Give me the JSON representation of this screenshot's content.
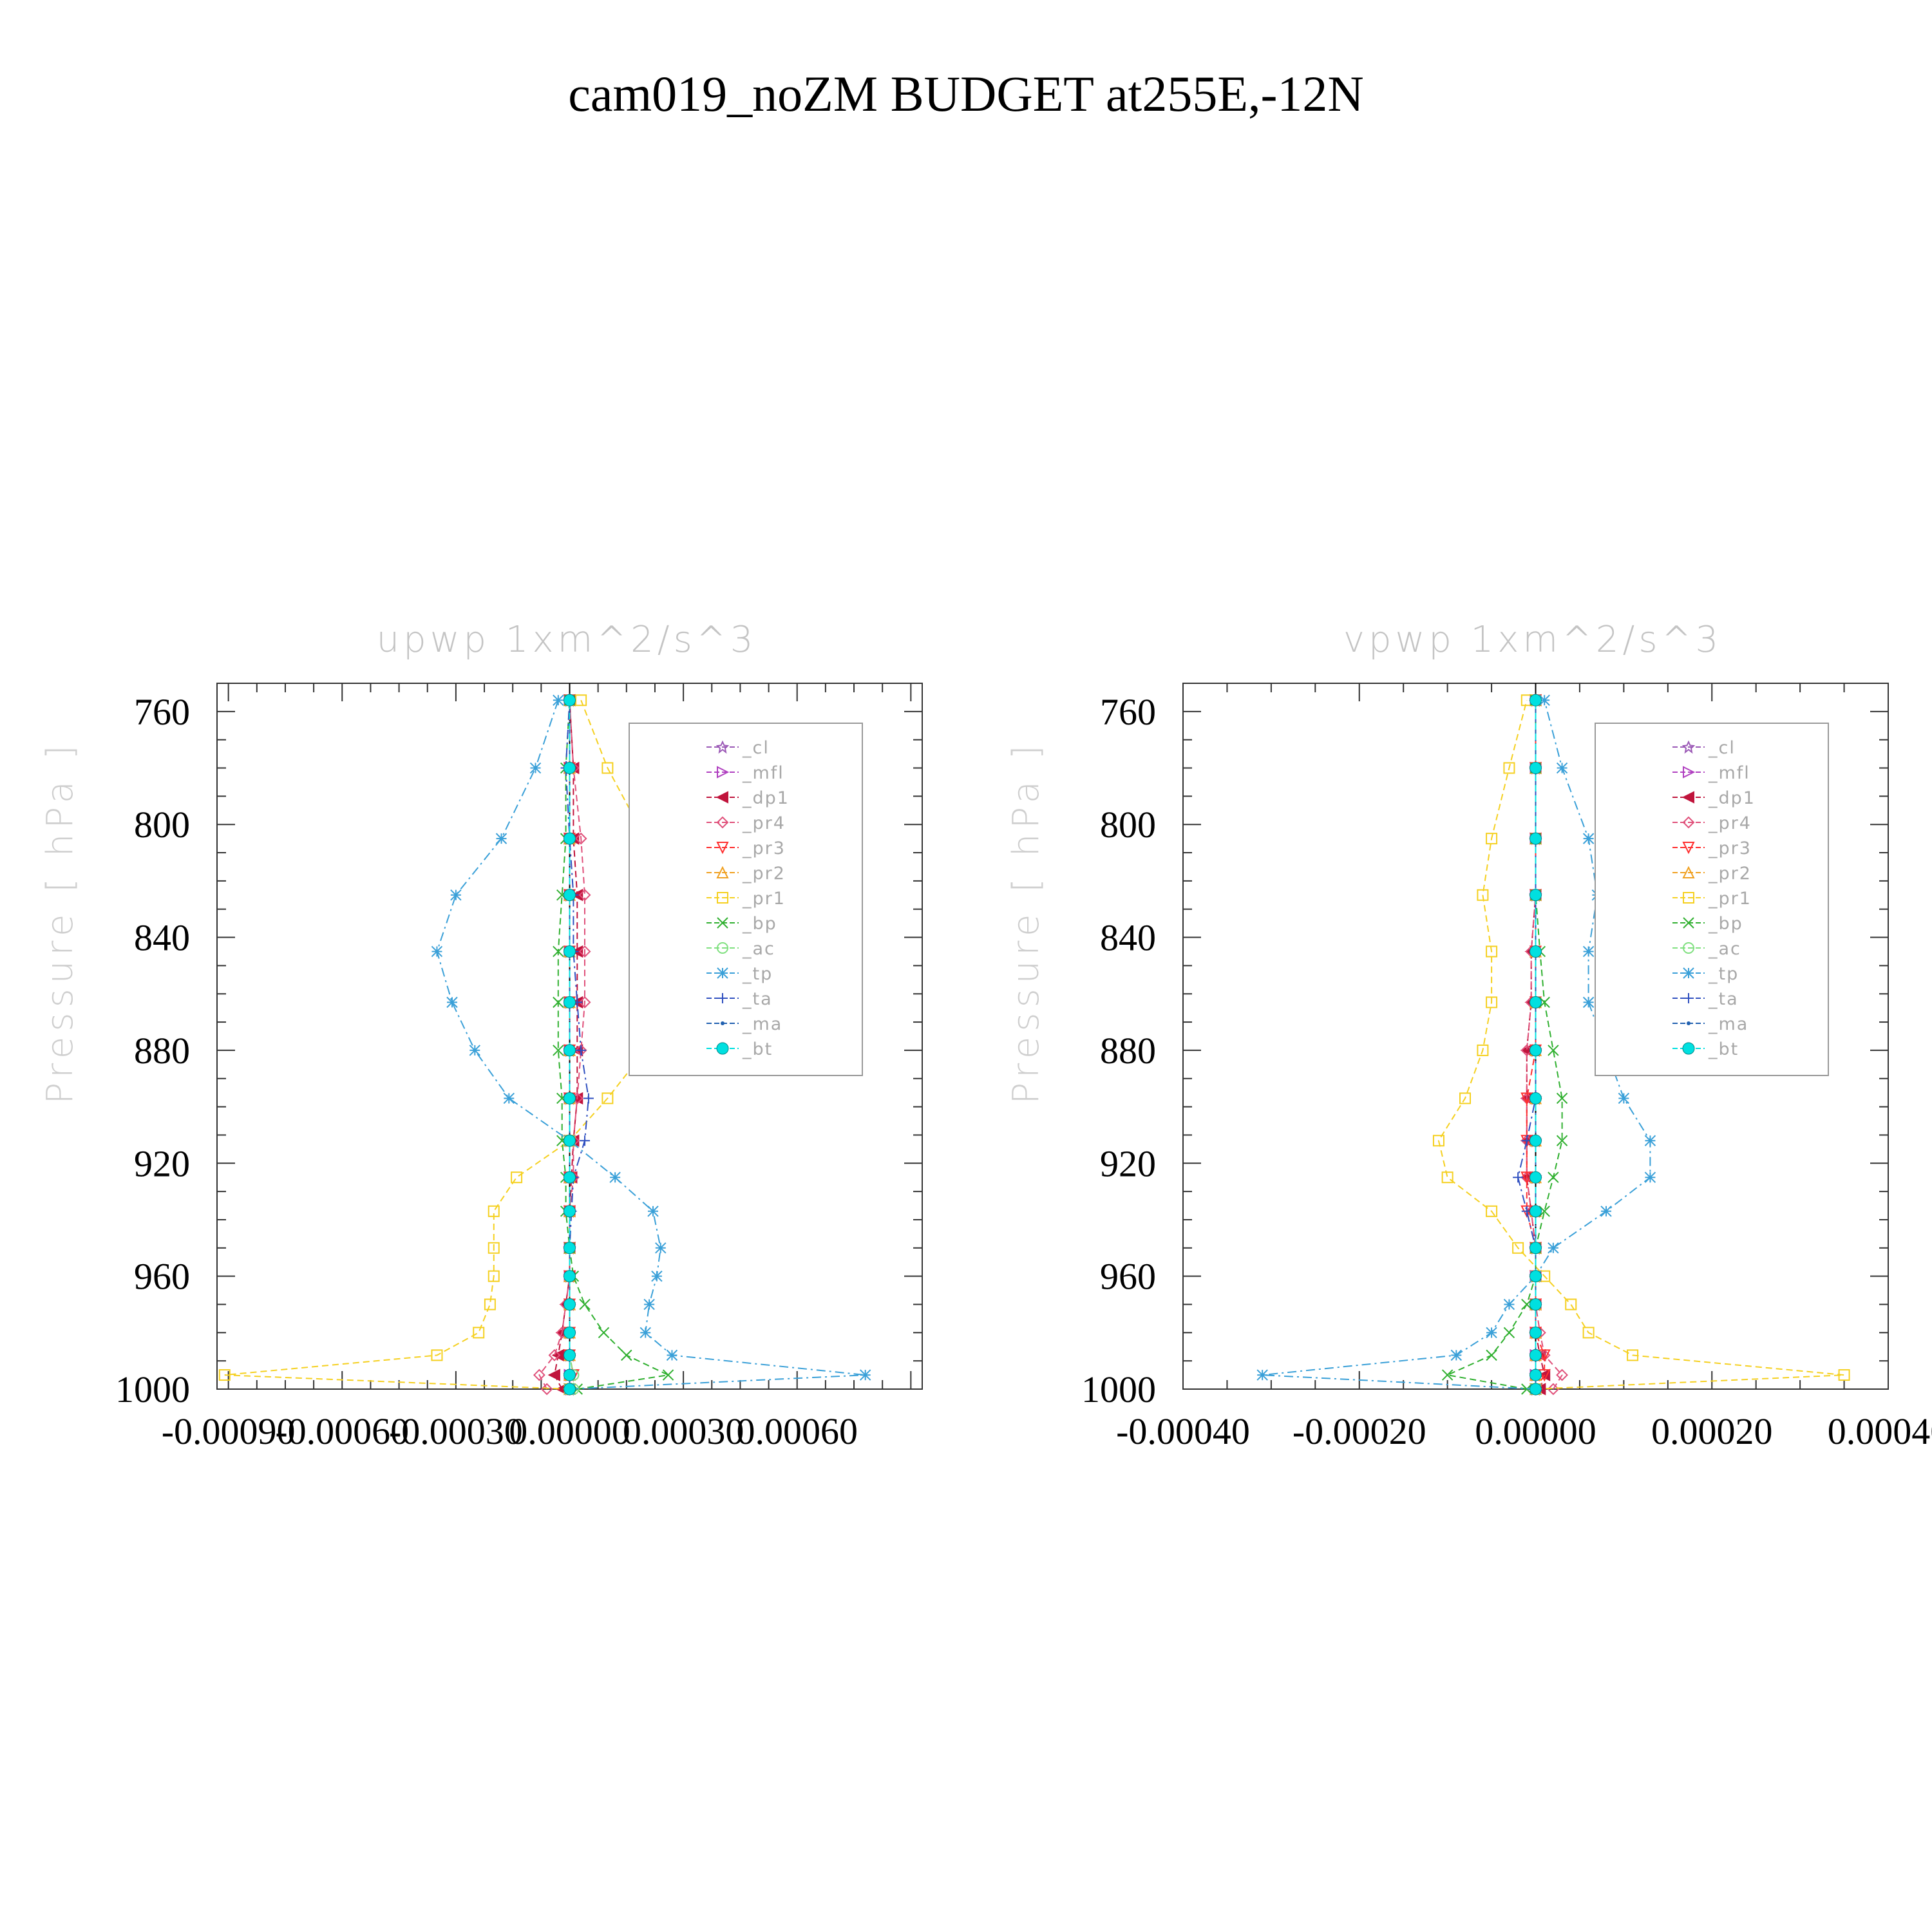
{
  "title": "cam019_noZM  BUDGET at255E,-12N",
  "legend": [
    {
      "label": "_cl",
      "color": "#9b59b6",
      "marker": "star"
    },
    {
      "label": "_mfl",
      "color": "#b040c0",
      "marker": "tri-right"
    },
    {
      "label": "_dp1",
      "color": "#c0143c",
      "marker": "tri-left"
    },
    {
      "label": "_pr4",
      "color": "#e0507a",
      "marker": "diamond"
    },
    {
      "label": "_pr3",
      "color": "#ff3030",
      "marker": "tri-down"
    },
    {
      "label": "_pr2",
      "color": "#f0a020",
      "marker": "tri-up"
    },
    {
      "label": "_pr1",
      "color": "#f5d020",
      "marker": "square"
    },
    {
      "label": "_bp",
      "color": "#30b030",
      "marker": "x"
    },
    {
      "label": "_ac",
      "color": "#80e080",
      "marker": "circle"
    },
    {
      "label": "_tp",
      "color": "#3aa0d8",
      "marker": "asterisk"
    },
    {
      "label": "_ta",
      "color": "#3050c0",
      "marker": "plus"
    },
    {
      "label": "_ma",
      "color": "#2060b0",
      "marker": "dot"
    },
    {
      "label": "_bt",
      "color": "#00e0e0",
      "marker": "filled-circle"
    }
  ],
  "chart_data": [
    {
      "type": "line",
      "title": "upwp    1xm^2/s^3",
      "ylabel": "Pressure  [ hPa ]",
      "xlim": [
        -0.00093,
        0.00093
      ],
      "ylim": [
        1000,
        750
      ],
      "xticks": [
        -0.0009,
        -0.0006,
        -0.0003,
        0.0,
        0.0003,
        0.0006
      ],
      "xtick_labels": [
        "-0.00090",
        "-0.00060",
        "-0.00030",
        "0.00000",
        "0.00030",
        "0.00060"
      ],
      "yticks": [
        760,
        800,
        840,
        880,
        920,
        960,
        1000
      ],
      "ytick_labels": [
        "760",
        "800",
        "840",
        "880",
        "920",
        "960",
        "1000"
      ],
      "pressure": [
        1000,
        995,
        988,
        980,
        970,
        960,
        950,
        937,
        925,
        912,
        897,
        880,
        863,
        845,
        825,
        805,
        780,
        756
      ],
      "series": [
        {
          "name": "_cl",
          "values": [
            0,
            0,
            0,
            0,
            0,
            0,
            0,
            0,
            0,
            0,
            0,
            0,
            0,
            0,
            0,
            0,
            0,
            0
          ]
        },
        {
          "name": "_mfl",
          "values": [
            0,
            0,
            0,
            0,
            0,
            0,
            0,
            0,
            0,
            0,
            0,
            0,
            0,
            0,
            0,
            0,
            0,
            0
          ]
        },
        {
          "name": "_dp1",
          "values": [
            -2e-05,
            -4e-05,
            -3e-05,
            -2e-05,
            -1e-05,
            0,
            0,
            0,
            5e-06,
            1e-05,
            2e-05,
            2e-05,
            2e-05,
            2e-05,
            2e-05,
            1e-05,
            1e-05,
            0
          ]
        },
        {
          "name": "_pr4",
          "values": [
            -6e-05,
            -8e-05,
            -4e-05,
            -2e-05,
            -1e-05,
            0,
            0,
            0,
            1e-05,
            1e-05,
            2e-05,
            3e-05,
            4e-05,
            4e-05,
            4e-05,
            3e-05,
            1e-05,
            0
          ]
        },
        {
          "name": "_pr3",
          "values": [
            0,
            1e-05,
            0,
            0,
            0,
            0,
            0,
            0,
            0,
            0,
            0,
            0,
            0,
            0,
            0,
            0,
            0,
            0
          ]
        },
        {
          "name": "_pr2",
          "values": [
            0,
            0,
            0,
            0,
            0,
            0,
            0,
            0,
            0,
            0,
            0,
            0,
            0,
            0,
            0,
            0,
            0,
            0
          ]
        },
        {
          "name": "_pr1",
          "values": [
            0,
            -0.00091,
            -0.00035,
            -0.00024,
            -0.00021,
            -0.0002,
            -0.0002,
            -0.0002,
            -0.00014,
            0,
            0.0001,
            0.0002,
            0.00029,
            0.00034,
            0.0003,
            0.0002,
            0.0001,
            3e-05
          ]
        },
        {
          "name": "_bp",
          "values": [
            2e-05,
            0.00026,
            0.00015,
            9e-05,
            4e-05,
            1e-05,
            0,
            -1e-05,
            -1e-05,
            -2e-05,
            -2e-05,
            -3e-05,
            -3e-05,
            -3e-05,
            -2e-05,
            -1e-05,
            -1e-05,
            0
          ]
        },
        {
          "name": "_ac",
          "values": [
            1e-05,
            1e-05,
            0,
            0,
            0,
            0,
            0,
            0,
            0,
            0,
            0,
            0,
            0,
            0,
            0,
            0,
            0,
            0
          ]
        },
        {
          "name": "_tp",
          "values": [
            0,
            0.00078,
            0.00027,
            0.0002,
            0.00021,
            0.00023,
            0.00024,
            0.00022,
            0.00012,
            0,
            -0.00016,
            -0.00025,
            -0.00031,
            -0.00035,
            -0.0003,
            -0.00018,
            -9e-05,
            -3e-05
          ]
        },
        {
          "name": "_ta",
          "values": [
            0,
            0,
            0,
            0,
            0,
            0,
            0,
            5e-06,
            1e-05,
            4e-05,
            5e-05,
            3e-05,
            2e-05,
            1e-05,
            1e-05,
            0,
            -1e-05,
            0
          ]
        },
        {
          "name": "_ma",
          "values": [
            0,
            0,
            0,
            0,
            0,
            0,
            0,
            0,
            0,
            0,
            0,
            0,
            0,
            0,
            0,
            0,
            0,
            0
          ]
        },
        {
          "name": "_bt",
          "values": [
            0,
            0,
            0,
            0,
            0,
            0,
            0,
            0,
            0,
            0,
            0,
            0,
            0,
            0,
            0,
            0,
            0,
            0
          ]
        }
      ]
    },
    {
      "type": "line",
      "title": "vpwp    1xm^2/s^3",
      "ylabel": "Pressure  [ hPa ]",
      "xlim": [
        -0.0004,
        0.0004
      ],
      "ylim": [
        1000,
        750
      ],
      "xticks": [
        -0.0004,
        -0.0002,
        0.0,
        0.0002,
        0.0004
      ],
      "xtick_labels": [
        "-0.00040",
        "-0.00020",
        "0.00000",
        "0.00020",
        "0.00040"
      ],
      "yticks": [
        760,
        800,
        840,
        880,
        920,
        960,
        1000
      ],
      "ytick_labels": [
        "760",
        "800",
        "840",
        "880",
        "920",
        "960",
        "1000"
      ],
      "pressure": [
        1000,
        995,
        988,
        980,
        970,
        960,
        950,
        937,
        925,
        912,
        897,
        880,
        863,
        845,
        825,
        805,
        780,
        756
      ],
      "series": [
        {
          "name": "_cl",
          "values": [
            0,
            0,
            0,
            0,
            0,
            0,
            0,
            0,
            0,
            0,
            0,
            0,
            0,
            0,
            0,
            0,
            0,
            0
          ]
        },
        {
          "name": "_mfl",
          "values": [
            0,
            0,
            0,
            0,
            0,
            0,
            0,
            0,
            0,
            0,
            0,
            0,
            0,
            0,
            0,
            0,
            0,
            0
          ]
        },
        {
          "name": "_dp1",
          "values": [
            5e-06,
            1e-05,
            5e-06,
            0,
            0,
            0,
            0,
            -5e-06,
            -1e-05,
            -1e-05,
            -1e-05,
            -1e-05,
            -5e-06,
            -5e-06,
            0,
            0,
            0,
            0
          ]
        },
        {
          "name": "_pr4",
          "values": [
            2e-05,
            3e-05,
            1e-05,
            5e-06,
            0,
            0,
            0,
            -5e-06,
            -1e-05,
            -1e-05,
            -1e-05,
            -1e-05,
            -5e-06,
            -5e-06,
            0,
            0,
            0,
            0
          ]
        },
        {
          "name": "_pr3",
          "values": [
            0,
            1e-05,
            1e-05,
            0,
            0,
            0,
            0,
            -1e-05,
            -1e-05,
            -1e-05,
            -1e-05,
            0,
            0,
            0,
            0,
            0,
            0,
            0
          ]
        },
        {
          "name": "_pr2",
          "values": [
            0,
            0,
            0,
            0,
            0,
            0,
            0,
            0,
            0,
            0,
            0,
            0,
            0,
            0,
            0,
            0,
            0,
            0
          ]
        },
        {
          "name": "_pr1",
          "values": [
            0,
            0.00035,
            0.00011,
            6e-05,
            4e-05,
            1e-05,
            -2e-05,
            -5e-05,
            -0.0001,
            -0.00011,
            -8e-05,
            -6e-05,
            -5e-05,
            -5e-05,
            -6e-05,
            -5e-05,
            -3e-05,
            -1e-05
          ]
        },
        {
          "name": "_bp",
          "values": [
            -1e-05,
            -0.0001,
            -5e-05,
            -3e-05,
            -1e-05,
            0,
            0,
            1e-05,
            2e-05,
            3e-05,
            3e-05,
            2e-05,
            1e-05,
            5e-06,
            0,
            0,
            0,
            0
          ]
        },
        {
          "name": "_ac",
          "values": [
            0,
            0,
            0,
            0,
            0,
            0,
            0,
            0,
            0,
            0,
            0,
            0,
            0,
            0,
            0,
            0,
            0,
            0
          ]
        },
        {
          "name": "_tp",
          "values": [
            0,
            -0.00031,
            -9e-05,
            -5e-05,
            -3e-05,
            0,
            2e-05,
            8e-05,
            0.00013,
            0.00013,
            0.0001,
            8e-05,
            6e-05,
            6e-05,
            7e-05,
            6e-05,
            3e-05,
            1e-05
          ]
        },
        {
          "name": "_ta",
          "values": [
            0,
            0,
            0,
            0,
            0,
            0,
            0,
            -1e-05,
            -2e-05,
            -1e-05,
            0,
            0,
            0,
            0,
            0,
            0,
            0,
            0
          ]
        },
        {
          "name": "_ma",
          "values": [
            0,
            0,
            0,
            0,
            0,
            0,
            0,
            0,
            0,
            0,
            0,
            0,
            0,
            0,
            0,
            0,
            0,
            0
          ]
        },
        {
          "name": "_bt",
          "values": [
            0,
            0,
            0,
            0,
            0,
            0,
            0,
            0,
            0,
            0,
            0,
            0,
            0,
            0,
            0,
            0,
            0,
            0
          ]
        }
      ]
    }
  ]
}
